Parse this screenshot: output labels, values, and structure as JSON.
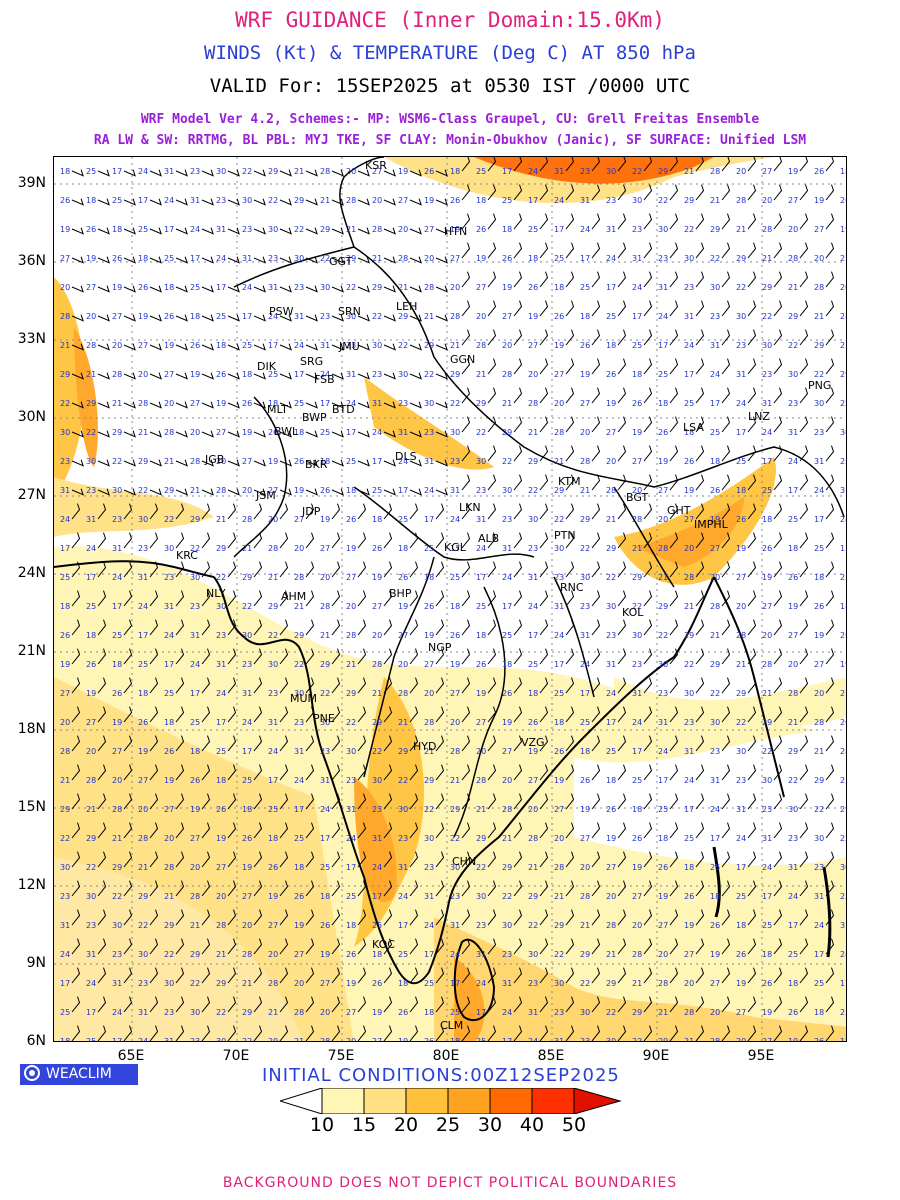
{
  "header": {
    "title": "WRF GUIDANCE (Inner Domain:15.0Km)",
    "subtitle": "WINDS (Kt) & TEMPERATURE (Deg C) AT 850 hPa",
    "valid": "VALID For: 15SEP2025 at 0530 IST /0000 UTC",
    "model_line1": "WRF Model Ver 4.2, Schemes:- MP: WSM6-Class Graupel, CU: Grell Freitas Ensemble",
    "model_line2": "RA LW & SW: RRTMG, BL PBL: MYJ TKE, SF CLAY: Monin-Obukhov (Janic), SF SURFACE: Unified LSM"
  },
  "map": {
    "lat_ticks": [
      "39N",
      "36N",
      "33N",
      "30N",
      "27N",
      "24N",
      "21N",
      "18N",
      "15N",
      "12N",
      "9N",
      "6N"
    ],
    "lon_ticks": [
      "65E",
      "70E",
      "75E",
      "80E",
      "85E",
      "90E",
      "95E"
    ],
    "stations": [
      "KSR",
      "HTN",
      "GGT",
      "PSW",
      "SRN",
      "LEH",
      "DIK",
      "SRG",
      "JMU",
      "GGN",
      "FSB",
      "BTD",
      "MLT",
      "BWP",
      "BWL",
      "LSA",
      "LNZ",
      "PNG",
      "JGB",
      "BKR",
      "DLS",
      "KTM",
      "BGT",
      "JSM",
      "JDP",
      "LKN",
      "GHT",
      "IMPHL",
      "KRC",
      "KGL",
      "ALB",
      "PTN",
      "NLY",
      "AHM",
      "BHP",
      "RNC",
      "KOL",
      "NGP",
      "MUM",
      "PNE",
      "HYD",
      "VZG",
      "CHN",
      "KOC",
      "CLM"
    ],
    "temperature_labels": [
      "18",
      "19",
      "20",
      "21",
      "22",
      "23",
      "24",
      "25",
      "26",
      "27",
      "28",
      "29",
      "30",
      "31",
      "17"
    ]
  },
  "legend": {
    "logo_text": "WEACLIM",
    "initial_conditions": "INITIAL CONDITIONS:00Z12SEP2025",
    "levels": [
      "10",
      "15",
      "20",
      "25",
      "30",
      "40",
      "50"
    ],
    "colors": [
      "#ffffff",
      "#fff5b4",
      "#ffe082",
      "#ffc23c",
      "#ffa420",
      "#ff6a00",
      "#ff3000",
      "#e11000"
    ]
  },
  "footer": {
    "note": "BACKGROUND DOES NOT DEPICT POLITICAL BOUNDARIES"
  }
}
